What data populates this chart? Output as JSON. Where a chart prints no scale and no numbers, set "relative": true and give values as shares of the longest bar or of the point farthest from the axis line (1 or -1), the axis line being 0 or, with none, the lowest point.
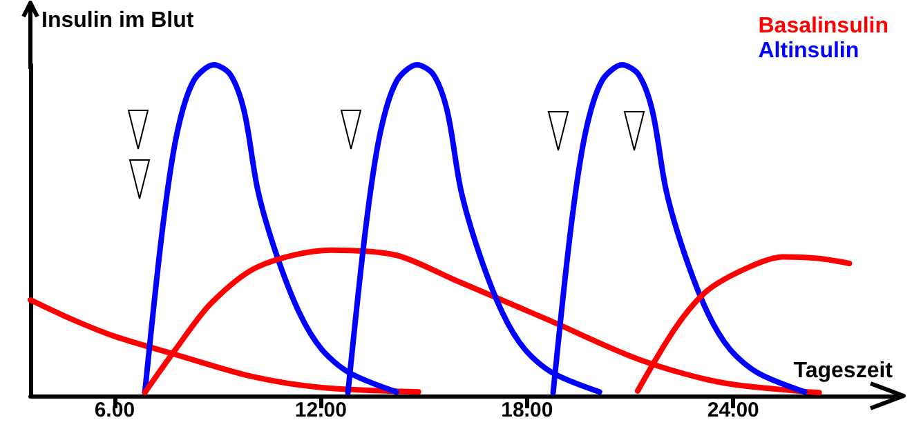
{
  "chart_data": {
    "type": "line",
    "ylabel": "Insulin im Blut",
    "xlabel": "Tageszeit",
    "relative": true,
    "xlim": [
      3.55,
      28.8
    ],
    "xticks": [
      {
        "value": 6,
        "label": "6.00"
      },
      {
        "value": 12,
        "label": "12.00"
      },
      {
        "value": 18,
        "label": "18.00"
      },
      {
        "value": 24,
        "label": "24.00"
      }
    ],
    "grid": false,
    "legend": "top right",
    "marker": "none",
    "line_style": "solid",
    "series": [
      {
        "name": "Basalinsulin",
        "color": "#ff0000",
        "x": [
          3.55,
          4.79,
          6.0,
          7.77,
          10.02,
          12.03,
          14.84
        ],
        "values": [
          0.29,
          0.23,
          0.18,
          0.125,
          0.058,
          0.025,
          0.012
        ]
      },
      {
        "name": "Altinsulin",
        "color": "#0000ff",
        "x": [
          6.88,
          7.4,
          7.81,
          8.29,
          8.89,
          9.37,
          9.77,
          10.17,
          10.7,
          11.38,
          12.03,
          12.83,
          14.2
        ],
        "values": [
          0.01,
          0.51,
          0.79,
          0.95,
          1,
          0.97,
          0.86,
          0.62,
          0.43,
          0.25,
          0.14,
          0.07,
          0.012
        ]
      },
      {
        "color": "#ff0000",
        "x": [
          6.88,
          7.77,
          8.81,
          10.17,
          12.3,
          14.19,
          15.9,
          18.61,
          21.26,
          23.67,
          26.5
        ],
        "values": [
          0.01,
          0.14,
          0.28,
          0.39,
          0.44,
          0.425,
          0.35,
          0.23,
          0.11,
          0.04,
          0.01
        ]
      },
      {
        "color": "#0000ff",
        "x": [
          12.79,
          13.31,
          13.72,
          14.2,
          14.8,
          15.28,
          15.68,
          16.08,
          16.61,
          17.29,
          17.94,
          18.74,
          20.11
        ],
        "values": [
          0.01,
          0.51,
          0.79,
          0.95,
          1,
          0.97,
          0.86,
          0.62,
          0.43,
          0.25,
          0.14,
          0.07,
          0.012
        ]
      },
      {
        "color": "#0000ff",
        "x": [
          18.76,
          19.28,
          19.69,
          20.17,
          20.77,
          21.25,
          21.65,
          22.05,
          22.58,
          23.26,
          23.91,
          24.71,
          26.08
        ],
        "values": [
          0.01,
          0.51,
          0.79,
          0.95,
          1,
          0.97,
          0.86,
          0.62,
          0.43,
          0.25,
          0.14,
          0.07,
          0.012
        ]
      },
      {
        "color": "#ff0000",
        "x": [
          21.22,
          22.35,
          23.27,
          24.48,
          25.44,
          26.5,
          27.38
        ],
        "values": [
          0.015,
          0.21,
          0.32,
          0.39,
          0.42,
          0.415,
          0.4
        ]
      }
    ]
  }
}
